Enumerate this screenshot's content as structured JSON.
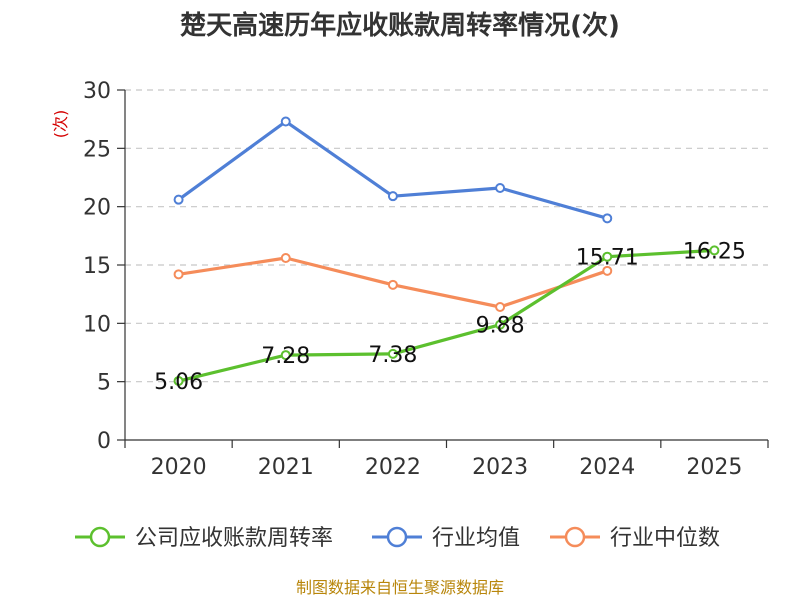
{
  "chart_data": {
    "type": "line",
    "title": "楚天高速历年应收账款周转率情况(次)",
    "ylabel": "(次)",
    "categories": [
      "2020",
      "2021",
      "2022",
      "2023",
      "2024",
      "2025"
    ],
    "ylim": [
      0,
      30
    ],
    "yticks": [
      0,
      5,
      10,
      15,
      20,
      25,
      30
    ],
    "grid": true,
    "legend_position": "bottom",
    "series": [
      {
        "name": "公司应收账款周转率",
        "color": "#5cc02e",
        "values": [
          5.06,
          7.28,
          7.38,
          9.88,
          15.71,
          16.25
        ],
        "labels": [
          "5.06",
          "7.28",
          "7.38",
          "9.88",
          "15.71",
          "16.25"
        ]
      },
      {
        "name": "行业均值",
        "color": "#4f7fd6",
        "values": [
          20.6,
          27.3,
          20.9,
          21.6,
          19.0,
          null
        ]
      },
      {
        "name": "行业中位数",
        "color": "#f58c5a",
        "values": [
          14.2,
          15.6,
          13.3,
          11.4,
          14.5,
          null
        ]
      }
    ]
  },
  "source": "制图数据来自恒生聚源数据库"
}
